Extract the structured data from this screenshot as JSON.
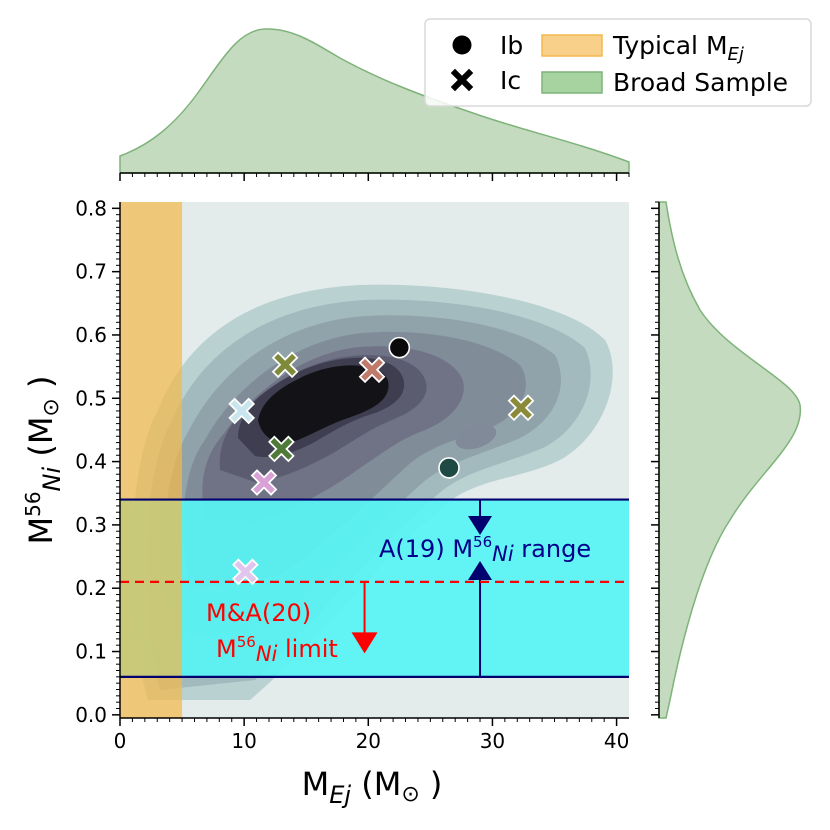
{
  "chart_data": {
    "type": "scatter",
    "title": "",
    "xlabel": {
      "main": "M",
      "sub": "Ej",
      "unit": " (M",
      "sun": "⊙",
      "close": " )"
    },
    "ylabel": {
      "main": "M",
      "sup": "56",
      "sub": "Ni",
      "unit": " (M",
      "sun": "⊙",
      "close": " )"
    },
    "xlim": [
      0,
      41
    ],
    "ylim": [
      -0.005,
      0.81
    ],
    "xticks": [
      0,
      10,
      20,
      30,
      40
    ],
    "xtick_labels": [
      "0",
      "10",
      "20",
      "30",
      "40"
    ],
    "yticks": [
      0.0,
      0.1,
      0.2,
      0.3,
      0.4,
      0.5,
      0.6,
      0.7,
      0.8
    ],
    "ytick_labels": [
      "0.0",
      "0.1",
      "0.2",
      "0.3",
      "0.4",
      "0.5",
      "0.6",
      "0.7",
      "0.8"
    ],
    "series": [
      {
        "name": "Ib",
        "marker": "circle",
        "points": [
          {
            "x": 22.5,
            "y": 0.58,
            "color": "#0a0a0a"
          },
          {
            "x": 26.5,
            "y": 0.39,
            "color": "#1f4a44"
          }
        ]
      },
      {
        "name": "Ic",
        "marker": "x",
        "points": [
          {
            "x": 13.3,
            "y": 0.553,
            "color": "#7e8a3a"
          },
          {
            "x": 20.3,
            "y": 0.545,
            "color": "#c07a6b"
          },
          {
            "x": 32.3,
            "y": 0.485,
            "color": "#8a8a38"
          },
          {
            "x": 9.8,
            "y": 0.48,
            "color": "#c9e6ee"
          },
          {
            "x": 13.0,
            "y": 0.42,
            "color": "#4f7a3a"
          },
          {
            "x": 11.6,
            "y": 0.367,
            "color": "#d9a2d6"
          },
          {
            "x": 10.1,
            "y": 0.226,
            "color": "#e0c6ec"
          }
        ]
      }
    ],
    "typical_mej_band": {
      "x_range": [
        0,
        5
      ],
      "color": "#f2b84b"
    },
    "a19_band": {
      "y_range": [
        0.06,
        0.34
      ],
      "color": "#58f4f4",
      "line_color": "#00006e",
      "arrow_x": 29
    },
    "ma20_limit": {
      "y": 0.21,
      "color": "#ff0000",
      "arrow_x": 19.7,
      "arrow_to_y": 0.105
    },
    "annotations": {
      "a19": {
        "text": "A(19) M",
        "sup": "56",
        "sub": "Ni",
        "rest": " range"
      },
      "ma20_line1": "M&A(20)",
      "ma20_line2": {
        "text": "M",
        "sup": "56",
        "sub": "Ni",
        "rest": " limit"
      }
    },
    "density_levels": [
      "#b5cece",
      "#9fb7bb",
      "#8ea0a8",
      "#808a98",
      "#6f7184",
      "#5a5a70",
      "#3d3c4e",
      "#0e0e12"
    ],
    "marginal_x": {
      "color": "#9cc394",
      "edge": "#7eb37a"
    },
    "marginal_y": {
      "color": "#9cc394",
      "edge": "#7eb37a"
    },
    "legend": {
      "position": "top-right",
      "items": [
        {
          "label": "Ib",
          "kind": "marker-circle"
        },
        {
          "label": "Ic",
          "kind": "marker-x"
        },
        {
          "label": "Typical M",
          "sub": "Ej",
          "kind": "patch",
          "color": "#f9d08a",
          "edge": "#f2b84b"
        },
        {
          "label": "Broad Sample",
          "kind": "patch",
          "color": "#a7d3a0",
          "edge": "#7eb37a"
        }
      ]
    }
  }
}
